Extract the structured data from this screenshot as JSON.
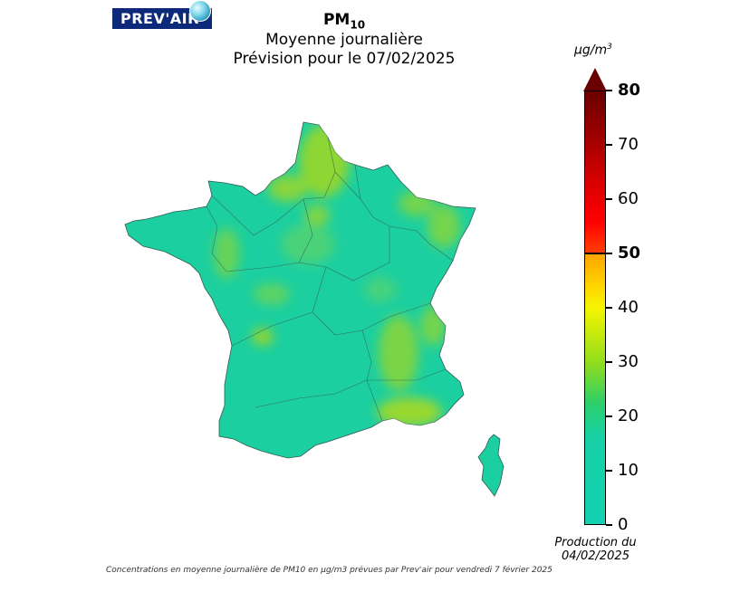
{
  "logo": {
    "text": "PREV'AIR"
  },
  "title": {
    "pollutant": "PM",
    "pollutant_sub": "10",
    "line2": "Moyenne journalière",
    "line3": "Prévision pour le 07/02/2025"
  },
  "legend": {
    "unit": "µg/m",
    "unit_sup": "3",
    "ticks": [
      {
        "value": 0,
        "label": "0",
        "bold": false
      },
      {
        "value": 10,
        "label": "10",
        "bold": false
      },
      {
        "value": 20,
        "label": "20",
        "bold": false
      },
      {
        "value": 30,
        "label": "30",
        "bold": false
      },
      {
        "value": 40,
        "label": "40",
        "bold": false
      },
      {
        "value": 50,
        "label": "50",
        "bold": true
      },
      {
        "value": 60,
        "label": "60",
        "bold": false
      },
      {
        "value": 70,
        "label": "70",
        "bold": false
      },
      {
        "value": 80,
        "label": "80",
        "bold": true
      }
    ],
    "min": 0,
    "max": 80,
    "colors": {
      "low": "#14d0b0",
      "mid": "#8edc1e",
      "yellow": "#f5f500",
      "orange": "#ffa500",
      "red": "#ff0000",
      "darkred": "#6a0000"
    }
  },
  "production": {
    "line1": "Production du",
    "line2": "04/02/2025"
  },
  "caption": "Concentrations en moyenne journalière de PM10 en µg/m3 prévues par Prev'air pour vendredi 7 février 2025",
  "map": {
    "base_color": "#1ccfa0",
    "hotspot_color": "#9ad62a"
  }
}
